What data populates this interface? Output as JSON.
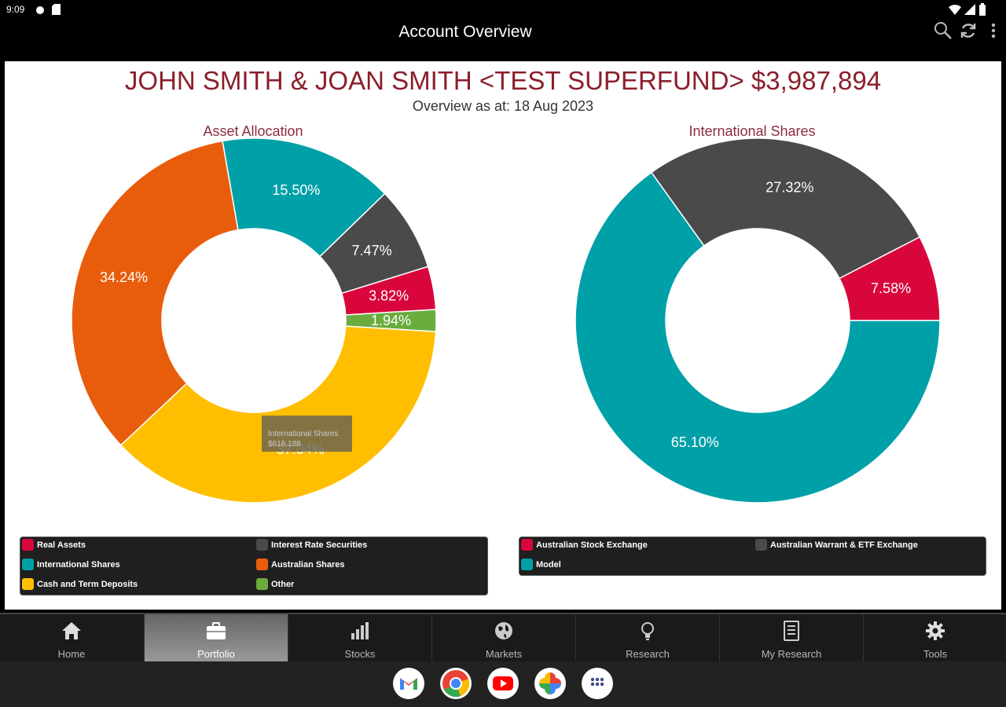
{
  "status_bar": {
    "time": "9:09"
  },
  "app_bar": {
    "title": "Account Overview"
  },
  "header": {
    "title": "JOHN SMITH & JOAN SMITH <TEST SUPERFUND> $3,987,894",
    "subtitle": "Overview as at: 18 Aug 2023"
  },
  "tooltip": {
    "category": "International Shares",
    "value": "$618,188"
  },
  "legends": {
    "asset_allocation": [
      {
        "label": "Real Assets",
        "color": "#d9063c"
      },
      {
        "label": "Interest Rate Securities",
        "color": "#4a4a4a"
      },
      {
        "label": "International Shares",
        "color": "#00a0a8"
      },
      {
        "label": "Australian Shares",
        "color": "#e85d0c"
      },
      {
        "label": "Cash and Term Deposits",
        "color": "#ffbf00"
      },
      {
        "label": "Other",
        "color": "#6aac3e"
      }
    ],
    "international_shares": [
      {
        "label": "Australian Stock Exchange",
        "color": "#d9063c"
      },
      {
        "label": "Australian Warrant & ETF Exchange",
        "color": "#4a4a4a"
      },
      {
        "label": "Model",
        "color": "#00a0a8"
      }
    ]
  },
  "chart_data": [
    {
      "type": "pie",
      "title": "Asset Allocation",
      "labels": [
        "Other",
        "Real Assets",
        "Interest Rate Securities",
        "International Shares",
        "Australian Shares",
        "Cash and Term Deposits"
      ],
      "values": [
        1.94,
        3.82,
        7.47,
        15.5,
        34.24,
        37.04
      ],
      "value_labels": [
        "1.94%",
        "3.82%",
        "7.47%",
        "15.50%",
        "34.24%",
        "37.04%"
      ],
      "colors": [
        "#6aac3e",
        "#d9063c",
        "#4a4a4a",
        "#00a0a8",
        "#e85d0c",
        "#ffbf00"
      ],
      "donut": true
    },
    {
      "type": "pie",
      "title": "International Shares",
      "labels": [
        "Australian Stock Exchange",
        "Australian Warrant & ETF Exchange",
        "Model"
      ],
      "values": [
        7.58,
        27.32,
        65.1
      ],
      "value_labels": [
        "7.58%",
        "27.32%",
        "65.10%"
      ],
      "colors": [
        "#d9063c",
        "#4a4a4a",
        "#00a0a8"
      ],
      "donut": true
    }
  ],
  "nav": {
    "tabs": [
      {
        "label": "Home",
        "icon": "home-icon"
      },
      {
        "label": "Portfolio",
        "icon": "briefcase-icon"
      },
      {
        "label": "Stocks",
        "icon": "bar-chart-icon"
      },
      {
        "label": "Markets",
        "icon": "globe-icon"
      },
      {
        "label": "Research",
        "icon": "lightbulb-icon"
      },
      {
        "label": "My Research",
        "icon": "document-icon"
      },
      {
        "label": "Tools",
        "icon": "gear-icon"
      }
    ],
    "active_tab": "Portfolio"
  },
  "dock": {
    "apps": [
      {
        "icon": "gmail-icon"
      },
      {
        "icon": "chrome-icon"
      },
      {
        "icon": "youtube-icon"
      },
      {
        "icon": "photos-icon"
      },
      {
        "icon": "app-drawer-icon"
      }
    ]
  }
}
